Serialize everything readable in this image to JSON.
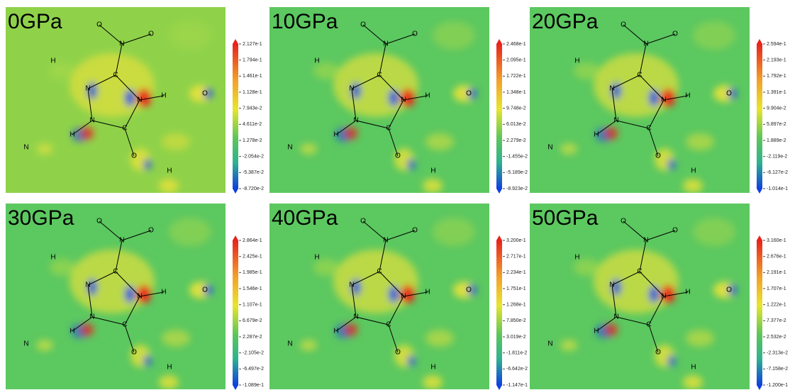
{
  "panels": [
    {
      "label": "0GPa",
      "colorbar": [
        "2.127e-1",
        "1.794e-1",
        "1.461e-1",
        "1.128e-1",
        "7.943e-2",
        "4.611e-2",
        "1.278e-2",
        "-2.054e-2",
        "-5.387e-2",
        "-8.720e-2"
      ],
      "atoms": [
        "O",
        "O",
        "N",
        "C",
        "N",
        "N",
        "H",
        "N",
        "C",
        "H",
        "O",
        "H",
        "O",
        "N",
        "H"
      ]
    },
    {
      "label": "10GPa",
      "colorbar": [
        "2.468e-1",
        "2.095e-1",
        "1.722e-1",
        "1.348e-1",
        "9.748e-2",
        "6.013e-2",
        "2.279e-2",
        "-1.455e-2",
        "-5.189e-2",
        "-8.923e-2"
      ],
      "atoms": [
        "O",
        "O",
        "N",
        "C",
        "N",
        "N",
        "H",
        "N",
        "C",
        "H",
        "O",
        "H",
        "O",
        "N",
        "H"
      ]
    },
    {
      "label": "20GPa",
      "colorbar": [
        "2.594e-1",
        "2.193e-1",
        "1.792e-1",
        "1.391e-1",
        "9.904e-2",
        "5.897e-2",
        "1.889e-2",
        "-2.119e-2",
        "-6.127e-2",
        "-1.014e-1"
      ],
      "atoms": [
        "O",
        "O",
        "N",
        "C",
        "N",
        "N",
        "H",
        "N",
        "C",
        "H",
        "O",
        "H",
        "O",
        "N",
        "H"
      ]
    },
    {
      "label": "30GPa",
      "colorbar": [
        "2.864e-1",
        "2.425e-1",
        "1.985e-1",
        "1.546e-1",
        "1.107e-1",
        "6.679e-2",
        "2.287e-2",
        "-2.105e-2",
        "-6.497e-2",
        "-1.089e-1"
      ],
      "atoms": [
        "O",
        "O",
        "N",
        "C",
        "N",
        "N",
        "H",
        "N",
        "C",
        "H",
        "O",
        "H",
        "O",
        "N",
        "H"
      ]
    },
    {
      "label": "40GPa",
      "colorbar": [
        "3.200e-1",
        "2.717e-1",
        "2.234e-1",
        "1.751e-1",
        "1.268e-1",
        "7.850e-2",
        "3.019e-2",
        "-1.811e-2",
        "-6.642e-2",
        "-1.147e-1"
      ],
      "atoms": [
        "O",
        "O",
        "N",
        "C",
        "N",
        "N",
        "H",
        "N",
        "C",
        "H",
        "O",
        "H",
        "O",
        "N",
        "H"
      ]
    },
    {
      "label": "50GPa",
      "colorbar": [
        "3.160e-1",
        "2.676e-1",
        "2.191e-1",
        "1.707e-1",
        "1.222e-1",
        "7.377e-2",
        "2.532e-2",
        "-2.313e-2",
        "-7.158e-2",
        "-1.200e-1"
      ],
      "atoms": [
        "O",
        "O",
        "N",
        "C",
        "N",
        "N",
        "H",
        "N",
        "C",
        "H",
        "O",
        "H",
        "O",
        "N",
        "H"
      ]
    }
  ]
}
